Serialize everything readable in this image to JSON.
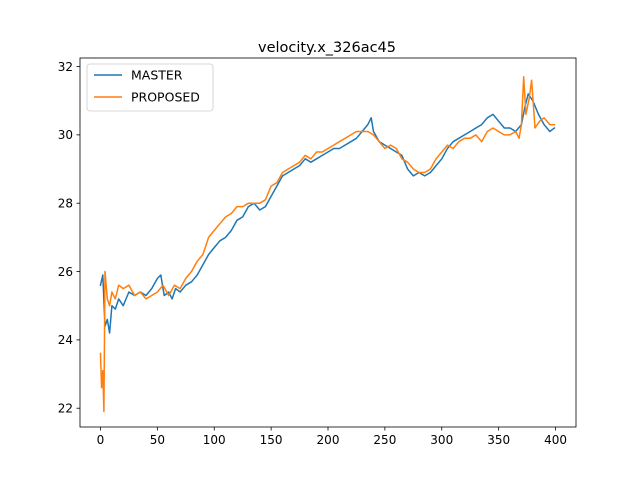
{
  "chart_data": {
    "type": "line",
    "title": "velocity.x_326ac45",
    "xlabel": "",
    "ylabel": "",
    "xlim": [
      -18,
      418
    ],
    "ylim": [
      21.45,
      32.25
    ],
    "xticks": [
      0,
      50,
      100,
      150,
      200,
      250,
      300,
      350,
      400
    ],
    "yticks": [
      22,
      24,
      26,
      28,
      30,
      32
    ],
    "grid": false,
    "legend": "top-left",
    "series": [
      {
        "name": "MASTER",
        "color": "#1f77b4",
        "points": [
          [
            0,
            25.6
          ],
          [
            2,
            25.9
          ],
          [
            4,
            24.4
          ],
          [
            6,
            24.6
          ],
          [
            8,
            24.2
          ],
          [
            10,
            25.0
          ],
          [
            13,
            24.9
          ],
          [
            16,
            25.2
          ],
          [
            20,
            25.0
          ],
          [
            25,
            25.4
          ],
          [
            30,
            25.3
          ],
          [
            35,
            25.4
          ],
          [
            40,
            25.3
          ],
          [
            45,
            25.5
          ],
          [
            50,
            25.8
          ],
          [
            53,
            25.9
          ],
          [
            56,
            25.3
          ],
          [
            60,
            25.4
          ],
          [
            63,
            25.2
          ],
          [
            66,
            25.5
          ],
          [
            70,
            25.4
          ],
          [
            75,
            25.6
          ],
          [
            80,
            25.7
          ],
          [
            85,
            25.9
          ],
          [
            90,
            26.2
          ],
          [
            95,
            26.5
          ],
          [
            100,
            26.7
          ],
          [
            105,
            26.9
          ],
          [
            110,
            27.0
          ],
          [
            115,
            27.2
          ],
          [
            120,
            27.5
          ],
          [
            125,
            27.6
          ],
          [
            130,
            27.9
          ],
          [
            135,
            28.0
          ],
          [
            140,
            27.8
          ],
          [
            145,
            27.9
          ],
          [
            150,
            28.2
          ],
          [
            155,
            28.5
          ],
          [
            160,
            28.8
          ],
          [
            165,
            28.9
          ],
          [
            170,
            29.0
          ],
          [
            175,
            29.1
          ],
          [
            180,
            29.3
          ],
          [
            185,
            29.2
          ],
          [
            190,
            29.3
          ],
          [
            195,
            29.4
          ],
          [
            200,
            29.5
          ],
          [
            205,
            29.6
          ],
          [
            210,
            29.6
          ],
          [
            215,
            29.7
          ],
          [
            220,
            29.8
          ],
          [
            225,
            29.9
          ],
          [
            230,
            30.1
          ],
          [
            235,
            30.3
          ],
          [
            238,
            30.5
          ],
          [
            240,
            30.1
          ],
          [
            245,
            29.8
          ],
          [
            250,
            29.7
          ],
          [
            255,
            29.6
          ],
          [
            260,
            29.5
          ],
          [
            265,
            29.4
          ],
          [
            270,
            29.0
          ],
          [
            275,
            28.8
          ],
          [
            280,
            28.9
          ],
          [
            285,
            28.8
          ],
          [
            290,
            28.9
          ],
          [
            295,
            29.1
          ],
          [
            300,
            29.3
          ],
          [
            305,
            29.6
          ],
          [
            310,
            29.8
          ],
          [
            315,
            29.9
          ],
          [
            320,
            30.0
          ],
          [
            325,
            30.1
          ],
          [
            330,
            30.2
          ],
          [
            335,
            30.3
          ],
          [
            340,
            30.5
          ],
          [
            345,
            30.6
          ],
          [
            350,
            30.4
          ],
          [
            355,
            30.2
          ],
          [
            360,
            30.2
          ],
          [
            365,
            30.1
          ],
          [
            370,
            30.3
          ],
          [
            373,
            30.8
          ],
          [
            376,
            31.2
          ],
          [
            380,
            31.0
          ],
          [
            385,
            30.6
          ],
          [
            390,
            30.3
          ],
          [
            395,
            30.1
          ],
          [
            399,
            30.2
          ]
        ]
      },
      {
        "name": "PROPOSED",
        "color": "#ff7f0e",
        "points": [
          [
            0,
            23.6
          ],
          [
            1,
            22.6
          ],
          [
            2,
            23.1
          ],
          [
            3,
            21.9
          ],
          [
            4,
            26.0
          ],
          [
            6,
            25.2
          ],
          [
            8,
            25.0
          ],
          [
            10,
            25.4
          ],
          [
            13,
            25.2
          ],
          [
            16,
            25.6
          ],
          [
            20,
            25.5
          ],
          [
            25,
            25.6
          ],
          [
            30,
            25.3
          ],
          [
            35,
            25.4
          ],
          [
            40,
            25.2
          ],
          [
            45,
            25.3
          ],
          [
            50,
            25.4
          ],
          [
            55,
            25.6
          ],
          [
            60,
            25.3
          ],
          [
            65,
            25.6
          ],
          [
            70,
            25.5
          ],
          [
            75,
            25.8
          ],
          [
            80,
            26.0
          ],
          [
            85,
            26.3
          ],
          [
            90,
            26.5
          ],
          [
            95,
            27.0
          ],
          [
            100,
            27.2
          ],
          [
            105,
            27.4
          ],
          [
            110,
            27.6
          ],
          [
            115,
            27.7
          ],
          [
            120,
            27.9
          ],
          [
            125,
            27.9
          ],
          [
            130,
            28.0
          ],
          [
            135,
            28.0
          ],
          [
            140,
            28.0
          ],
          [
            145,
            28.1
          ],
          [
            150,
            28.5
          ],
          [
            155,
            28.6
          ],
          [
            160,
            28.9
          ],
          [
            165,
            29.0
          ],
          [
            170,
            29.1
          ],
          [
            175,
            29.2
          ],
          [
            180,
            29.4
          ],
          [
            185,
            29.3
          ],
          [
            190,
            29.5
          ],
          [
            195,
            29.5
          ],
          [
            200,
            29.6
          ],
          [
            205,
            29.7
          ],
          [
            210,
            29.8
          ],
          [
            215,
            29.9
          ],
          [
            220,
            30.0
          ],
          [
            225,
            30.1
          ],
          [
            230,
            30.1
          ],
          [
            235,
            30.1
          ],
          [
            240,
            30.0
          ],
          [
            245,
            29.8
          ],
          [
            250,
            29.6
          ],
          [
            255,
            29.7
          ],
          [
            260,
            29.6
          ],
          [
            265,
            29.3
          ],
          [
            270,
            29.2
          ],
          [
            275,
            29.0
          ],
          [
            280,
            28.9
          ],
          [
            285,
            28.9
          ],
          [
            290,
            29.0
          ],
          [
            295,
            29.3
          ],
          [
            300,
            29.5
          ],
          [
            305,
            29.7
          ],
          [
            310,
            29.6
          ],
          [
            315,
            29.8
          ],
          [
            320,
            29.9
          ],
          [
            325,
            29.9
          ],
          [
            330,
            30.0
          ],
          [
            335,
            29.8
          ],
          [
            340,
            30.1
          ],
          [
            345,
            30.2
          ],
          [
            350,
            30.1
          ],
          [
            355,
            30.0
          ],
          [
            360,
            30.0
          ],
          [
            365,
            30.1
          ],
          [
            368,
            29.9
          ],
          [
            370,
            30.3
          ],
          [
            372,
            31.7
          ],
          [
            374,
            30.6
          ],
          [
            377,
            31.1
          ],
          [
            379,
            31.6
          ],
          [
            382,
            30.2
          ],
          [
            386,
            30.4
          ],
          [
            390,
            30.5
          ],
          [
            395,
            30.3
          ],
          [
            399,
            30.3
          ]
        ]
      }
    ]
  }
}
